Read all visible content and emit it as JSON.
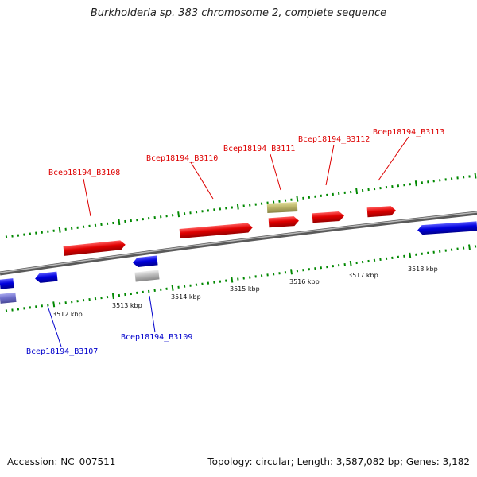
{
  "title": "Burkholderia sp. 383 chromosome 2, complete sequence",
  "footer": {
    "accession": "Accession: NC_007511",
    "summary": "Topology: circular; Length: 3,587,082 bp; Genes: 3,182"
  },
  "axis_labels": [
    "3512 kbp",
    "3513 kbp",
    "3514 kbp",
    "3515 kbp",
    "3516 kbp",
    "3517 kbp",
    "3518 kbp"
  ],
  "gene_labels": {
    "b3108": "Bcep18194_B3108",
    "b3110": "Bcep18194_B3110",
    "b3111": "Bcep18194_B3111",
    "b3112": "Bcep18194_B3112",
    "b3113": "Bcep18194_B3113",
    "b3107": "Bcep18194_B3107",
    "b3109": "Bcep18194_B3109"
  },
  "colors": {
    "forward_gene": "#e00000",
    "reverse_gene": "#0000dd",
    "pseudo_gene": "#bdb76b",
    "grey_gene": "#bbbbbb",
    "tick": "#008800",
    "backbone": "#777777",
    "label_forward": "#dd0000",
    "label_reverse": "#0000cc"
  }
}
